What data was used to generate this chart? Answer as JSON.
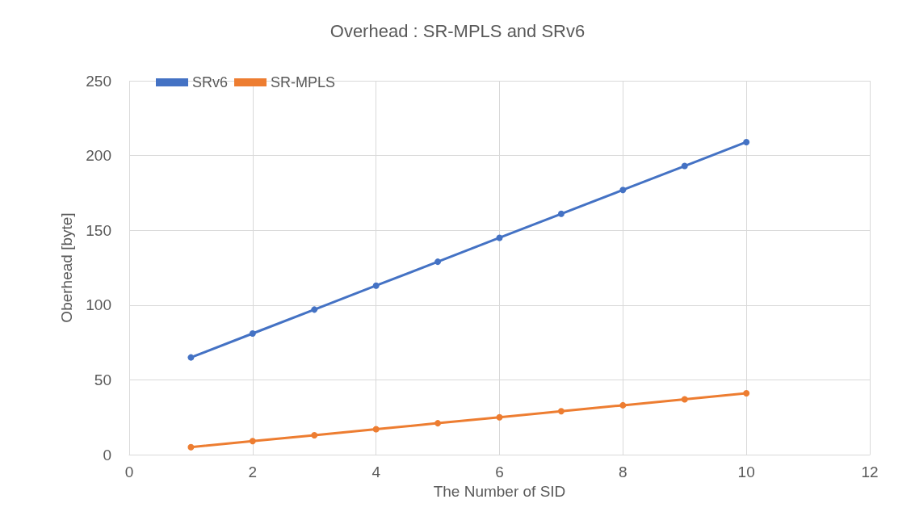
{
  "chart_data": {
    "type": "line",
    "title": "Overhead : SR-MPLS and SRv6",
    "xlabel": "The Number of SID",
    "ylabel": "Oberhead [byte]",
    "x": [
      1,
      2,
      3,
      4,
      5,
      6,
      7,
      8,
      9,
      10
    ],
    "series": [
      {
        "name": "SRv6",
        "color": "#4472c4",
        "values": [
          65,
          81,
          97,
          113,
          129,
          145,
          161,
          177,
          193,
          209
        ]
      },
      {
        "name": "SR-MPLS",
        "color": "#ed7d31",
        "values": [
          5,
          9,
          13,
          17,
          21,
          25,
          29,
          33,
          37,
          41
        ]
      }
    ],
    "xlim": [
      0,
      12
    ],
    "xticks": [
      0,
      2,
      4,
      6,
      8,
      10,
      12
    ],
    "ylim": [
      0,
      250
    ],
    "yticks": [
      0,
      50,
      100,
      150,
      200,
      250
    ],
    "grid": true,
    "legend": "top left",
    "marker": "circle",
    "line_style": "solid"
  }
}
